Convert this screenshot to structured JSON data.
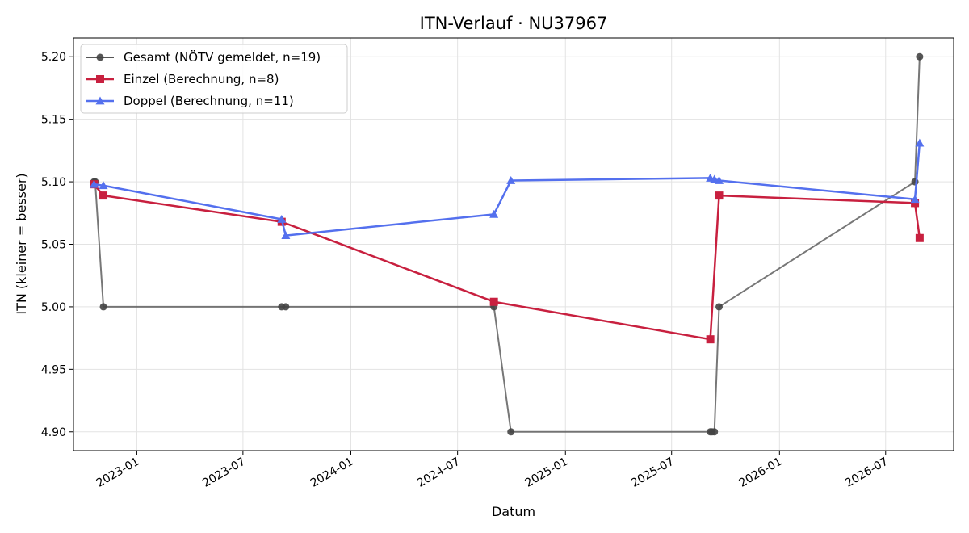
{
  "chart_data": {
    "type": "line",
    "title": "ITN-Verlauf · NU37967",
    "xlabel": "Datum",
    "ylabel": "ITN  (kleiner = besser)",
    "x_tick_labels": [
      "2023-01",
      "2023-07",
      "2024-01",
      "2024-07",
      "2025-01",
      "2025-07",
      "2026-01",
      "2026-07"
    ],
    "y_tick_labels": [
      "4.90",
      "4.95",
      "5.00",
      "5.05",
      "5.10",
      "5.15",
      "5.20"
    ],
    "ylim": [
      4.885,
      5.215
    ],
    "xlim": [
      "2022-09-15",
      "2026-10-25"
    ],
    "grid": true,
    "legend_position": "upper-left",
    "series": [
      {
        "name": "Gesamt (NÖTV gemeldet, n=19)",
        "color": "#555555",
        "marker": "circle",
        "points": [
          {
            "x": "2022-10-20",
            "y": 5.1
          },
          {
            "x": "2022-10-22",
            "y": 5.1
          },
          {
            "x": "2022-11-05",
            "y": 5.0
          },
          {
            "x": "2023-09-05",
            "y": 5.0
          },
          {
            "x": "2023-09-12",
            "y": 5.0
          },
          {
            "x": "2024-09-01",
            "y": 5.0
          },
          {
            "x": "2024-09-30",
            "y": 4.9
          },
          {
            "x": "2025-09-05",
            "y": 4.9
          },
          {
            "x": "2025-09-08",
            "y": 4.9
          },
          {
            "x": "2025-09-12",
            "y": 4.9
          },
          {
            "x": "2025-09-20",
            "y": 5.0
          },
          {
            "x": "2026-08-20",
            "y": 5.1
          },
          {
            "x": "2026-08-28",
            "y": 5.2
          }
        ]
      },
      {
        "name": "Einzel (Berechnung, n=8)",
        "color": "#c8203f",
        "marker": "square",
        "points": [
          {
            "x": "2022-10-20",
            "y": 5.098
          },
          {
            "x": "2022-11-05",
            "y": 5.089
          },
          {
            "x": "2023-09-05",
            "y": 5.068
          },
          {
            "x": "2024-09-01",
            "y": 5.004
          },
          {
            "x": "2025-09-05",
            "y": 4.974
          },
          {
            "x": "2025-09-20",
            "y": 5.089
          },
          {
            "x": "2026-08-20",
            "y": 5.083
          },
          {
            "x": "2026-08-28",
            "y": 5.055
          }
        ]
      },
      {
        "name": "Doppel (Berechnung, n=11)",
        "color": "#5470ee",
        "marker": "triangle",
        "points": [
          {
            "x": "2022-10-20",
            "y": 5.098
          },
          {
            "x": "2022-11-05",
            "y": 5.097
          },
          {
            "x": "2023-09-05",
            "y": 5.07
          },
          {
            "x": "2023-09-12",
            "y": 5.057
          },
          {
            "x": "2024-09-01",
            "y": 5.074
          },
          {
            "x": "2024-09-30",
            "y": 5.101
          },
          {
            "x": "2025-09-05",
            "y": 5.103
          },
          {
            "x": "2025-09-12",
            "y": 5.102
          },
          {
            "x": "2025-09-20",
            "y": 5.101
          },
          {
            "x": "2026-08-20",
            "y": 5.086
          },
          {
            "x": "2026-08-28",
            "y": 5.131
          }
        ]
      }
    ]
  }
}
